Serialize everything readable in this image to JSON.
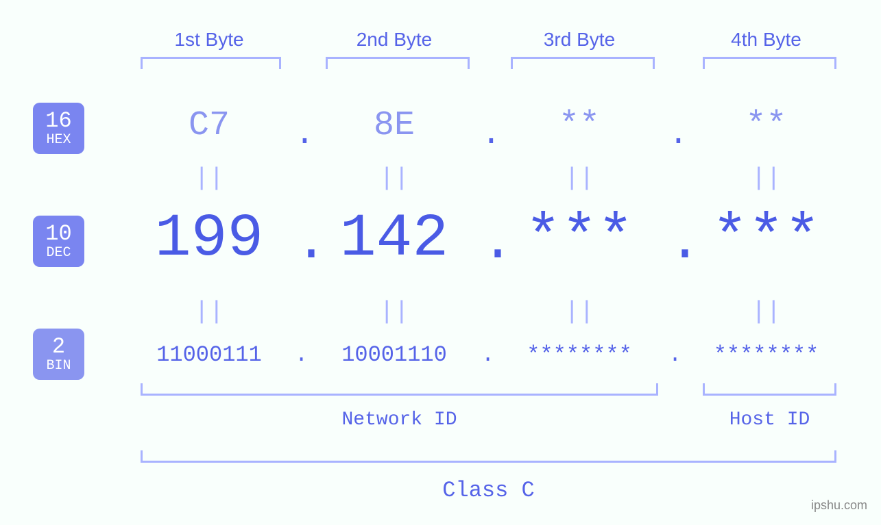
{
  "diagram": {
    "type": "infographic",
    "background_color": "#f9fffc",
    "accent_color": "#5563e8",
    "accent_light": "#8a95f0",
    "bracket_color": "#a9b3ff",
    "badge_color": "#7a85f0",
    "font_family": "Courier New, monospace",
    "badges": {
      "hex": {
        "base": "16",
        "label": "HEX"
      },
      "dec": {
        "base": "10",
        "label": "DEC"
      },
      "bin": {
        "base": "2",
        "label": "BIN"
      }
    },
    "byte_headers": [
      "1st Byte",
      "2nd Byte",
      "3rd Byte",
      "4th Byte"
    ],
    "hex_values": [
      "C7",
      "8E",
      "**",
      "**"
    ],
    "dec_values": [
      "199",
      "142",
      "***",
      "***"
    ],
    "bin_values": [
      "11000111",
      "10001110",
      "********",
      "********"
    ],
    "equals_symbol": "||",
    "dot_symbol": ".",
    "sections": {
      "network": "Network ID",
      "host": "Host ID",
      "class": "Class C"
    },
    "watermark": "ipshu.com",
    "font_sizes": {
      "header": 28,
      "hex": 50,
      "dec": 88,
      "bin": 32,
      "equals": 36,
      "section_label": 28,
      "class_label": 32,
      "badge_num": 32,
      "badge_lbl": 20
    }
  }
}
